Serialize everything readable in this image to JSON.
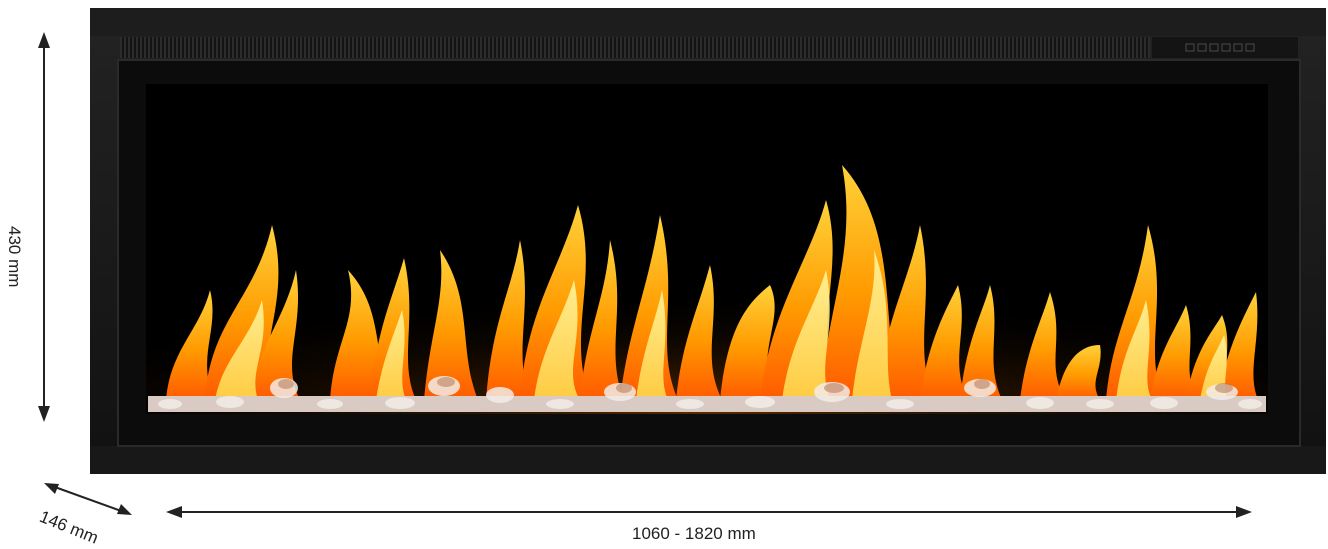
{
  "dimensions": {
    "height": "430 mm",
    "depth": "146 mm",
    "width": "1060 - 1820 mm"
  },
  "product": {
    "kind": "electric-fireplace-insert",
    "frame_color": "#161616",
    "flame_colors": [
      "#ff6a00",
      "#ffb000",
      "#ffe45c"
    ]
  },
  "control_panel": {
    "button_count": 6
  }
}
